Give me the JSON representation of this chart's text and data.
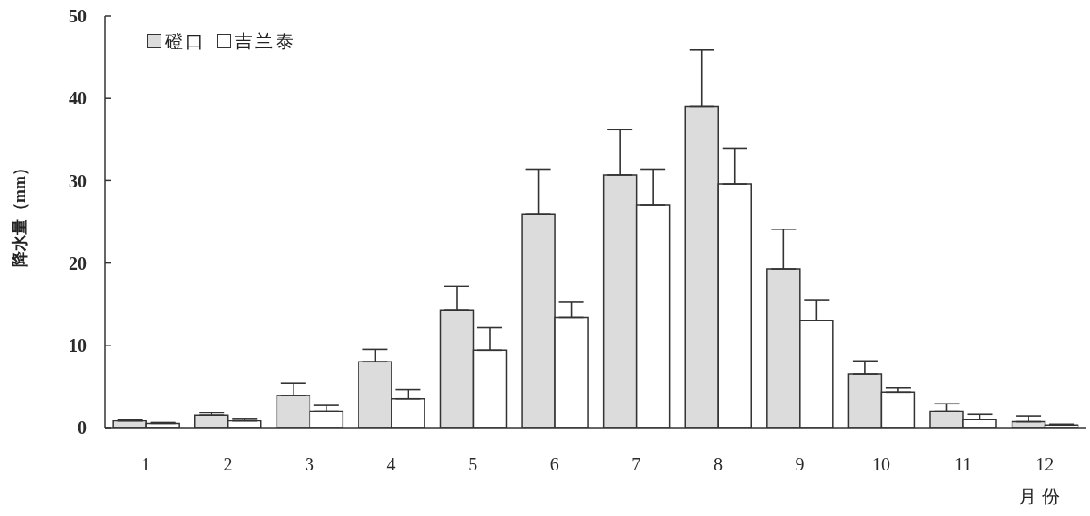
{
  "chart_data": {
    "type": "bar",
    "xlabel": "月份",
    "ylabel": "降水量（mm）",
    "categories": [
      "1",
      "2",
      "3",
      "4",
      "5",
      "6",
      "7",
      "8",
      "9",
      "10",
      "11",
      "12"
    ],
    "series": [
      {
        "name": "磴口",
        "color": "#dcdcdc",
        "values": [
          0.8,
          1.5,
          3.9,
          8.0,
          14.3,
          25.9,
          30.7,
          39.0,
          19.3,
          6.5,
          2.0,
          0.7
        ],
        "errors": [
          [
            0.8,
            1.0
          ],
          [
            1.5,
            1.8
          ],
          [
            3.9,
            5.4
          ],
          [
            8.0,
            9.5
          ],
          [
            14.3,
            17.2
          ],
          [
            25.9,
            31.4
          ],
          [
            30.7,
            36.2
          ],
          [
            39.0,
            45.9
          ],
          [
            19.3,
            24.1
          ],
          [
            6.5,
            8.1
          ],
          [
            2.0,
            2.9
          ],
          [
            0.7,
            1.4
          ]
        ]
      },
      {
        "name": "吉兰泰",
        "color": "#ffffff",
        "values": [
          0.5,
          0.8,
          2.0,
          3.5,
          9.4,
          13.4,
          27.0,
          29.6,
          13.0,
          4.3,
          1.0,
          0.3
        ],
        "errors": [
          [
            0.5,
            0.6
          ],
          [
            0.8,
            1.1
          ],
          [
            2.0,
            2.7
          ],
          [
            3.5,
            4.6
          ],
          [
            9.4,
            12.2
          ],
          [
            13.4,
            15.3
          ],
          [
            27.0,
            31.4
          ],
          [
            29.6,
            33.9
          ],
          [
            13.0,
            15.5
          ],
          [
            4.3,
            4.8
          ],
          [
            1.0,
            1.6
          ],
          [
            0.3,
            0.4
          ]
        ]
      }
    ],
    "ylim": [
      0,
      50
    ],
    "yticks": [
      0,
      10,
      20,
      30,
      40,
      50
    ],
    "legend": "top left"
  }
}
